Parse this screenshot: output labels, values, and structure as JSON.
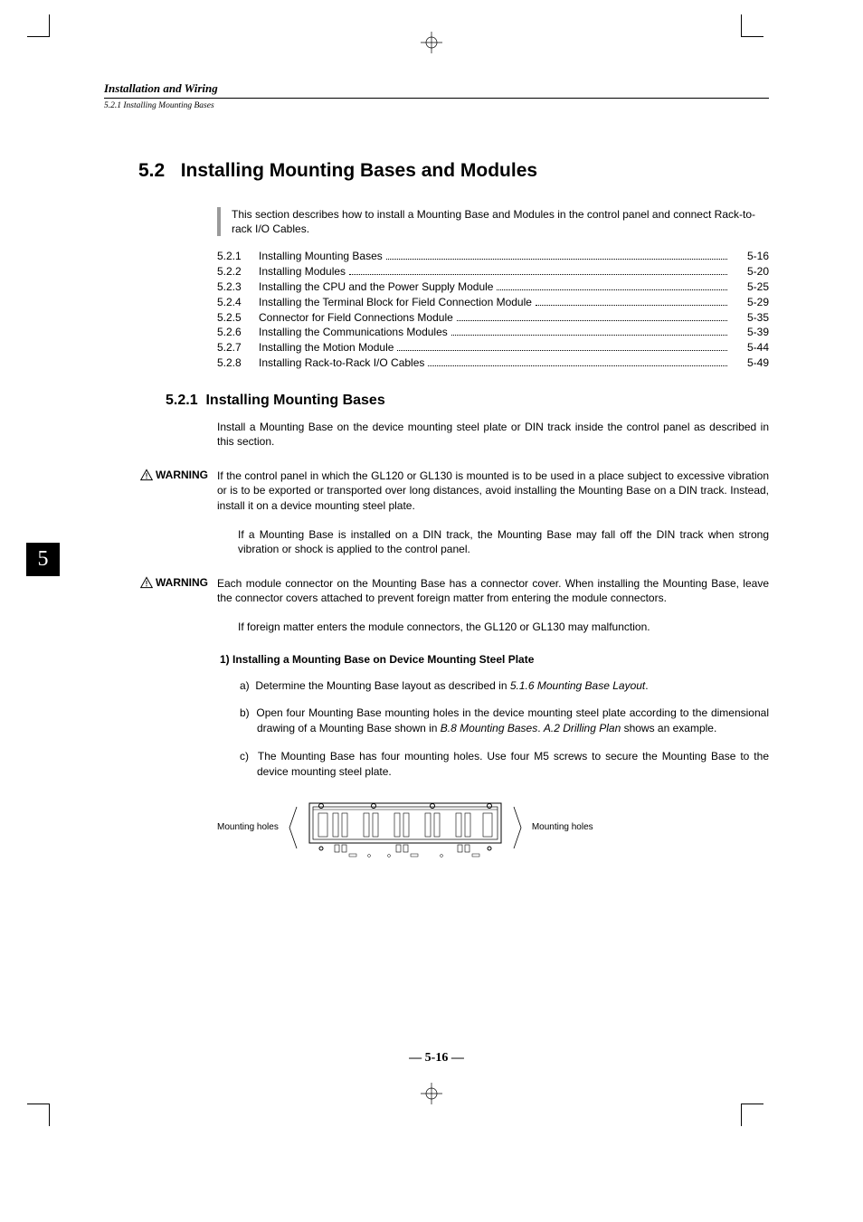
{
  "header": {
    "running": "Installation and Wiring",
    "sub": "5.2.1 Installing Mounting Bases"
  },
  "chapter_tab": "5",
  "h1_num": "5.2",
  "h1_title": "Installing Mounting Bases and Modules",
  "intro": "This section describes how to install a Mounting Base and Modules in the control panel and connect Rack-to-rack I/O Cables.",
  "toc": [
    {
      "num": "5.2.1",
      "title": "Installing Mounting Bases",
      "page": "5-16"
    },
    {
      "num": "5.2.2",
      "title": "Installing Modules",
      "page": "5-20"
    },
    {
      "num": "5.2.3",
      "title": "Installing the CPU and the Power Supply Module",
      "page": "5-25"
    },
    {
      "num": "5.2.4",
      "title": "Installing the Terminal Block for Field Connection Module",
      "page": "5-29"
    },
    {
      "num": "5.2.5",
      "title": "Connector for Field Connections Module",
      "page": "5-35"
    },
    {
      "num": "5.2.6",
      "title": "Installing the Communications Modules",
      "page": "5-39"
    },
    {
      "num": "5.2.7",
      "title": "Installing the Motion Module",
      "page": "5-44"
    },
    {
      "num": "5.2.8",
      "title": "Installing Rack-to-Rack I/O Cables",
      "page": "5-49"
    }
  ],
  "h2_num": "5.2.1",
  "h2_title": "Installing Mounting Bases",
  "para1": "Install a Mounting Base on the device mounting steel plate or DIN track inside the control panel as described in this section.",
  "warning_label": "WARNING",
  "warn1": "If the control panel in which the GL120 or GL130 is mounted is to be used in a place subject to excessive vibration or is to be exported or transported over long distances, avoid installing the Mounting Base on a DIN track. Instead, install it on a device mounting steel plate.",
  "warn1_sub": "If a Mounting Base is installed on a DIN track, the Mounting Base may fall off the DIN track when strong vibration or shock is applied to the control panel.",
  "warn2": "Each module connector on the Mounting Base has a connector cover. When installing the Mounting Base, leave the connector covers attached to prevent foreign matter from entering the module connectors.",
  "warn2_sub": "If foreign matter enters the module connectors, the GL120 or GL130 may malfunction.",
  "step_head": "1) Installing a Mounting Base on Device Mounting Steel Plate",
  "steps": [
    {
      "letter": "a)",
      "pre": "Determine the Mounting Base layout as described in ",
      "ital": "5.1.6 Mounting Base Layout",
      "post": "."
    },
    {
      "letter": "b)",
      "pre": "Open four Mounting Base mounting holes in the device mounting steel plate according to the dimensional drawing of a Mounting Base shown in ",
      "ital": "B.8 Mounting Bases",
      "post": ". ",
      "ital2": "A.2 Drilling Plan",
      "post2": " shows an example."
    },
    {
      "letter": "c)",
      "pre": "The Mounting Base has four mounting holes. Use four M5 screws to secure the Mounting Base to the device mounting steel plate.",
      "ital": "",
      "post": ""
    }
  ],
  "diagram_label": "Mounting holes",
  "page_number": "— 5-16 —"
}
